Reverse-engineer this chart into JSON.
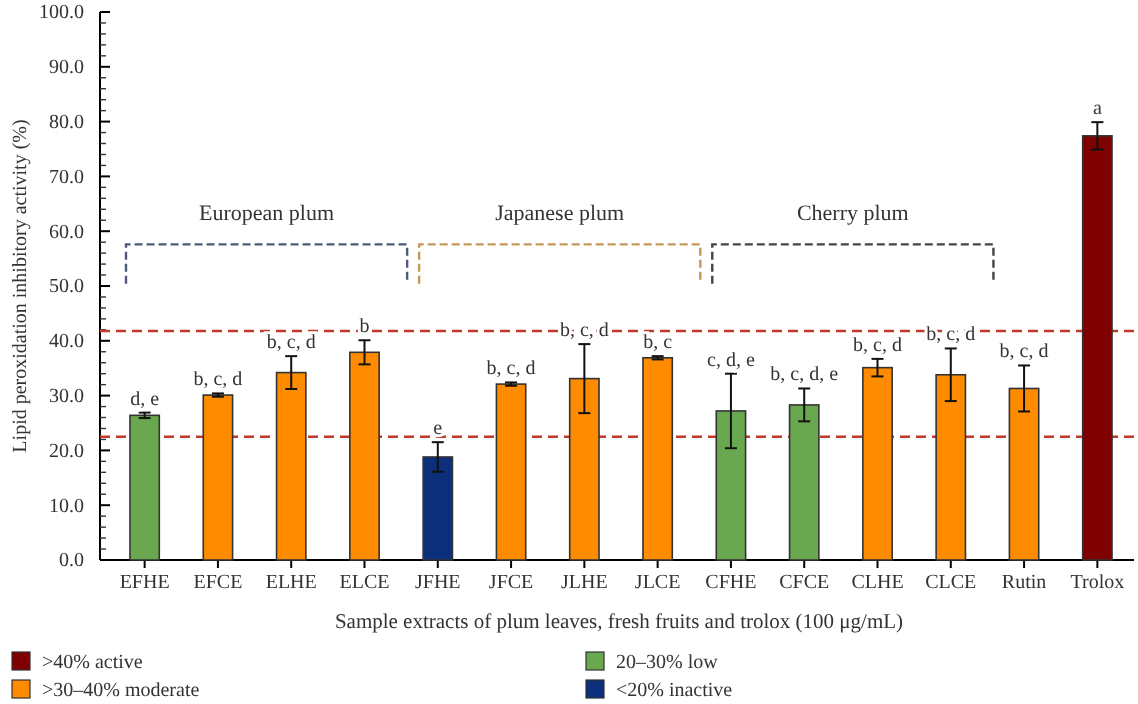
{
  "chart_data": {
    "type": "bar",
    "xlabel": "Sample extracts of plum leaves, fresh fruits and trolox (100 μg/mL)",
    "ylabel": "Lipid peroxidation inhibitory activity (%)",
    "categories": [
      "EFHE",
      "EFCE",
      "ELHE",
      "ELCE",
      "JFHE",
      "JFCE",
      "JLHE",
      "JLCE",
      "CFHE",
      "CFCE",
      "CLHE",
      "CLCE",
      "Rutin",
      "Trolox"
    ],
    "series": [
      {
        "name": ">40% active",
        "color": "#7f0000",
        "values": [
          null,
          null,
          null,
          null,
          null,
          null,
          null,
          null,
          null,
          null,
          null,
          null,
          null,
          77.4
        ],
        "errors": [
          null,
          null,
          null,
          null,
          null,
          null,
          null,
          null,
          null,
          null,
          null,
          null,
          null,
          2.5
        ]
      },
      {
        "name": ">30–40% moderate",
        "color": "#ff8c00",
        "values": [
          null,
          30.1,
          34.2,
          37.9,
          null,
          32.1,
          33.1,
          36.9,
          null,
          null,
          35.1,
          33.8,
          31.3,
          null
        ],
        "errors": [
          null,
          0.3,
          3,
          2.2,
          null,
          0.3,
          6.3,
          0.3,
          null,
          null,
          1.6,
          4.8,
          4.2,
          null
        ]
      },
      {
        "name": "20–30% low",
        "color": "#6aa84f",
        "values": [
          26.4,
          null,
          null,
          null,
          null,
          null,
          null,
          null,
          27.2,
          28.3,
          null,
          null,
          null,
          null
        ],
        "errors": [
          0.5,
          null,
          null,
          null,
          null,
          null,
          null,
          null,
          6.8,
          3,
          null,
          null,
          null,
          null
        ]
      },
      {
        "name": "<20% inactive",
        "color": "#0b2f7a",
        "values": [
          null,
          null,
          null,
          null,
          18.8,
          null,
          null,
          null,
          null,
          null,
          null,
          null,
          null,
          null
        ],
        "errors": [
          null,
          null,
          null,
          null,
          2.7,
          null,
          null,
          null,
          null,
          null,
          null,
          null,
          null,
          null
        ]
      }
    ],
    "ylim": [
      0,
      100
    ],
    "yticks": [
      {
        "value": 0,
        "label": "0.0"
      },
      {
        "value": 10,
        "label": "10.0"
      },
      {
        "value": 20,
        "label": "20.0"
      },
      {
        "value": 30,
        "label": "30.0"
      },
      {
        "value": 40,
        "label": "40.0"
      },
      {
        "value": 50,
        "label": "50.0"
      },
      {
        "value": 60,
        "label": "60.0"
      },
      {
        "value": 70,
        "label": "70.0"
      },
      {
        "value": 80,
        "label": "80.0"
      },
      {
        "value": 90,
        "label": "90.0"
      },
      {
        "value": 100,
        "label": "100.0"
      }
    ],
    "ref_lines": [
      {
        "axis": "y",
        "value": 41.8,
        "color": "#c0392b",
        "line_style": "dashed"
      },
      {
        "axis": "y",
        "value": 22.5,
        "color": "#c0392b",
        "line_style": "dashed"
      }
    ],
    "annotations": [
      "European plum",
      "Japanese plum",
      "Cherry plum",
      {
        "text": "d, e",
        "x": "EFHE",
        "y": 26.9
      },
      {
        "text": "b, c, d",
        "x": "EFCE",
        "y": 30.4
      },
      {
        "text": "b, c, d",
        "x": "ELHE",
        "y": 37.2
      },
      {
        "text": "b",
        "x": "ELCE",
        "y": 40.1
      },
      {
        "text": "e",
        "x": "JFHE",
        "y": 21.5
      },
      {
        "text": "b, c, d",
        "x": "JFCE",
        "y": 32.4
      },
      {
        "text": "b, c, d",
        "x": "JLHE",
        "y": 39.4
      },
      {
        "text": "b, c",
        "x": "JLCE",
        "y": 37.2
      },
      {
        "text": "c, d, e",
        "x": "CFHE",
        "y": 34
      },
      {
        "text": "b, c, d, e",
        "x": "CFCE",
        "y": 31.3
      },
      {
        "text": "b, c, d",
        "x": "CLHE",
        "y": 36.7
      },
      {
        "text": "b, c, d",
        "x": "CLCE",
        "y": 38.6
      },
      {
        "text": "b, c, d",
        "x": "Rutin",
        "y": 35.5
      },
      {
        "text": "a",
        "x": "Trolox",
        "y": 79.9
      }
    ],
    "legend": "bottom",
    "grid": false
  }
}
